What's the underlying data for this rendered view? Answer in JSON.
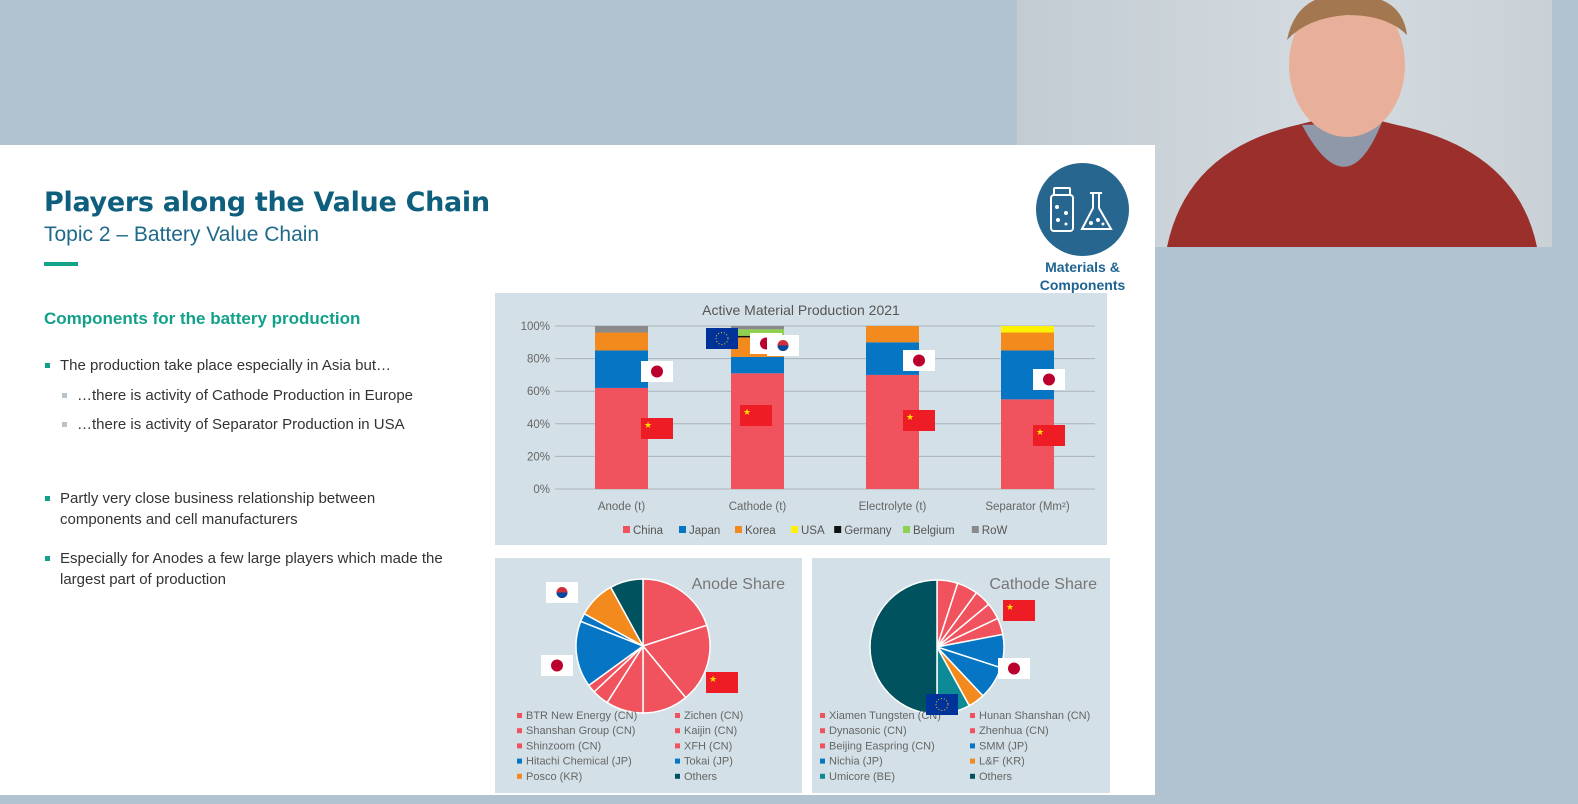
{
  "slide": {
    "title": "Players along the Value Chain",
    "subtitle": "Topic 2 – Battery Value Chain",
    "section_heading": "Components for the battery production",
    "bullets": [
      "The production take place especially in Asia but…",
      "…there is activity of Cathode Production in Europe",
      "…there is activity of Separator Production in USA",
      "Partly very close business relationship between",
      "components and cell manufacturers",
      "Especially for Anodes a few large players which made the",
      "largest part of production"
    ],
    "badge": {
      "icon": "jar-and-flask-icon",
      "label_line1": "Materials &",
      "label_line2": "Components"
    }
  },
  "colors": {
    "China": "#f0535e",
    "Japan": "#0575c4",
    "Korea": "#f28a1e",
    "USA": "#fff200",
    "Germany": "#111111",
    "Belgium": "#8fd14f",
    "RoW": "#8a8a8a",
    "Others": "#00535e",
    "Umicore": "#0e8a96",
    "accent": "#13a08a",
    "title": "#0d5f7d"
  },
  "chart_data": [
    {
      "type": "bar",
      "stacked": true,
      "title": "Active Material Production 2021",
      "categories": [
        "Anode (t)",
        "Cathode (t)",
        "Electrolyte (t)",
        "Separator (Mm²)"
      ],
      "yticks": [
        "0%",
        "20%",
        "40%",
        "60%",
        "80%",
        "100%"
      ],
      "ylim": [
        0,
        100
      ],
      "grid": true,
      "legend": "bottom",
      "series": [
        {
          "name": "China",
          "values": [
            62,
            71,
            70,
            55
          ]
        },
        {
          "name": "Japan",
          "values": [
            23,
            10,
            20,
            30
          ]
        },
        {
          "name": "Korea",
          "values": [
            11,
            12,
            10,
            11
          ]
        },
        {
          "name": "USA",
          "values": [
            0,
            0,
            0,
            4
          ]
        },
        {
          "name": "Germany",
          "values": [
            0,
            1,
            0,
            0
          ]
        },
        {
          "name": "Belgium",
          "values": [
            0,
            4,
            0,
            0
          ]
        },
        {
          "name": "RoW",
          "values": [
            4,
            2,
            0,
            0
          ]
        }
      ],
      "flags": [
        [
          "China",
          "Japan"
        ],
        [
          "China",
          "Japan",
          "Korea",
          "EU"
        ],
        [
          "China",
          "Japan"
        ],
        [
          "China",
          "Japan"
        ]
      ]
    },
    {
      "type": "pie",
      "title": "Anode Share",
      "legend": "bottom",
      "slices": [
        {
          "label": "BTR New Energy (CN)",
          "value": 20,
          "color": "China"
        },
        {
          "label": "Shanshan Group (CN)",
          "value": 19,
          "color": "China"
        },
        {
          "label": "Shinzoom (CN)",
          "value": 11,
          "color": "China"
        },
        {
          "label": "Zichen (CN)",
          "value": 9,
          "color": "China"
        },
        {
          "label": "Kaijin (CN)",
          "value": 4,
          "color": "China"
        },
        {
          "label": "XFH (CN)",
          "value": 2,
          "color": "China"
        },
        {
          "label": "Hitachi Chemical (JP)",
          "value": 16,
          "color": "Japan"
        },
        {
          "label": "Tokai (JP)",
          "value": 2,
          "color": "Japan"
        },
        {
          "label": "Posco (KR)",
          "value": 9,
          "color": "Korea"
        },
        {
          "label": "Others",
          "value": 8,
          "color": "Others"
        }
      ],
      "legend_order": [
        0,
        3,
        1,
        4,
        2,
        5,
        6,
        7,
        8,
        9
      ]
    },
    {
      "type": "pie",
      "title": "Cathode Share",
      "legend": "bottom",
      "slices": [
        {
          "label": "Xiamen Tungsten (CN)",
          "value": 5,
          "color": "China"
        },
        {
          "label": "Hunan Shanshan (CN)",
          "value": 5,
          "color": "China"
        },
        {
          "label": "Dynasonic (CN)",
          "value": 4,
          "color": "China"
        },
        {
          "label": "Zhenhua (CN)",
          "value": 4,
          "color": "China"
        },
        {
          "label": "Beijing Easpring (CN)",
          "value": 4,
          "color": "China"
        },
        {
          "label": "SMM (JP)",
          "value": 8,
          "color": "Japan"
        },
        {
          "label": "Nichia (JP)",
          "value": 8,
          "color": "Japan"
        },
        {
          "label": "L&F (KR)",
          "value": 4,
          "color": "Korea"
        },
        {
          "label": "Umicore (BE)",
          "value": 8,
          "color": "Umicore"
        },
        {
          "label": "Others",
          "value": 50,
          "color": "Others"
        }
      ],
      "legend_order": [
        0,
        1,
        2,
        3,
        4,
        5,
        6,
        7,
        8,
        9
      ]
    }
  ]
}
